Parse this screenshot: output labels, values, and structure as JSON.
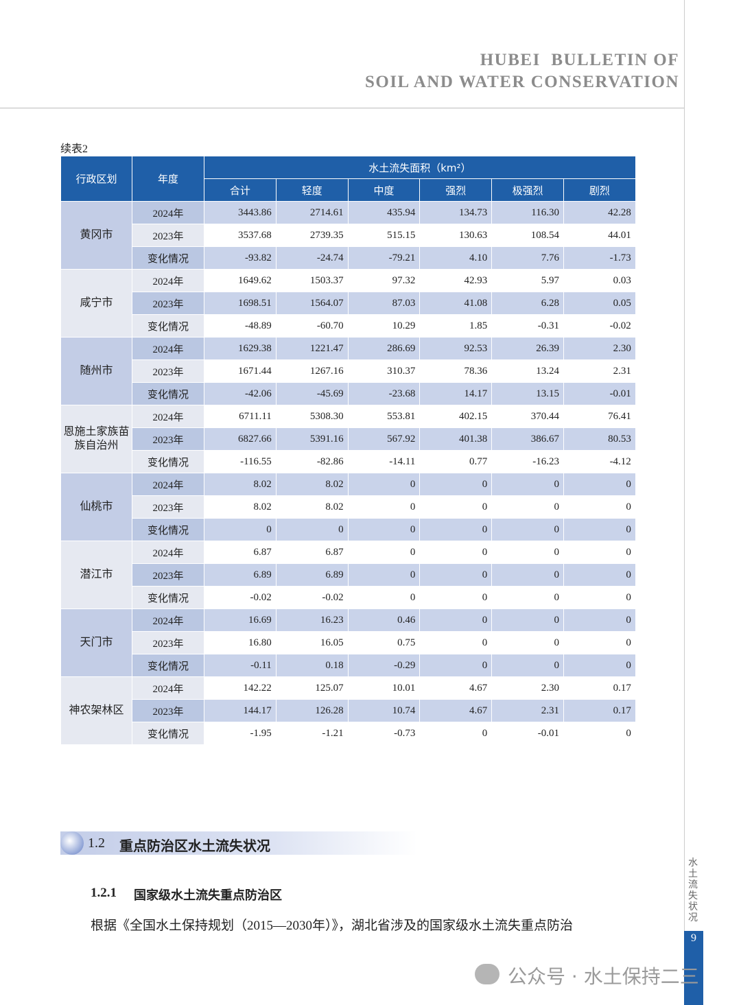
{
  "header": {
    "title_line1": "HUBEI  BULLETIN OF",
    "title_line2": "SOIL AND WATER CONSERVATION"
  },
  "sidebar": {
    "label": "水土流失状况",
    "page_number": "9"
  },
  "table": {
    "caption": "续表2",
    "header": {
      "region": "行政区划",
      "year": "年度",
      "group": "水土流失面积（km²）",
      "sub": [
        "合计",
        "轻度",
        "中度",
        "强烈",
        "极强烈",
        "剧烈"
      ]
    },
    "groups": [
      {
        "region": "黄冈市",
        "rows": [
          [
            "2024年",
            "3443.86",
            "2714.61",
            "435.94",
            "134.73",
            "116.30",
            "42.28"
          ],
          [
            "2023年",
            "3537.68",
            "2739.35",
            "515.15",
            "130.63",
            "108.54",
            "44.01"
          ],
          [
            "变化情况",
            "-93.82",
            "-24.74",
            "-79.21",
            "4.10",
            "7.76",
            "-1.73"
          ]
        ]
      },
      {
        "region": "咸宁市",
        "rows": [
          [
            "2024年",
            "1649.62",
            "1503.37",
            "97.32",
            "42.93",
            "5.97",
            "0.03"
          ],
          [
            "2023年",
            "1698.51",
            "1564.07",
            "87.03",
            "41.08",
            "6.28",
            "0.05"
          ],
          [
            "变化情况",
            "-48.89",
            "-60.70",
            "10.29",
            "1.85",
            "-0.31",
            "-0.02"
          ]
        ]
      },
      {
        "region": "随州市",
        "rows": [
          [
            "2024年",
            "1629.38",
            "1221.47",
            "286.69",
            "92.53",
            "26.39",
            "2.30"
          ],
          [
            "2023年",
            "1671.44",
            "1267.16",
            "310.37",
            "78.36",
            "13.24",
            "2.31"
          ],
          [
            "变化情况",
            "-42.06",
            "-45.69",
            "-23.68",
            "14.17",
            "13.15",
            "-0.01"
          ]
        ]
      },
      {
        "region": "恩施土家族苗族自治州",
        "rows": [
          [
            "2024年",
            "6711.11",
            "5308.30",
            "553.81",
            "402.15",
            "370.44",
            "76.41"
          ],
          [
            "2023年",
            "6827.66",
            "5391.16",
            "567.92",
            "401.38",
            "386.67",
            "80.53"
          ],
          [
            "变化情况",
            "-116.55",
            "-82.86",
            "-14.11",
            "0.77",
            "-16.23",
            "-4.12"
          ]
        ]
      },
      {
        "region": "仙桃市",
        "rows": [
          [
            "2024年",
            "8.02",
            "8.02",
            "0",
            "0",
            "0",
            "0"
          ],
          [
            "2023年",
            "8.02",
            "8.02",
            "0",
            "0",
            "0",
            "0"
          ],
          [
            "变化情况",
            "0",
            "0",
            "0",
            "0",
            "0",
            "0"
          ]
        ]
      },
      {
        "region": "潜江市",
        "rows": [
          [
            "2024年",
            "6.87",
            "6.87",
            "0",
            "0",
            "0",
            "0"
          ],
          [
            "2023年",
            "6.89",
            "6.89",
            "0",
            "0",
            "0",
            "0"
          ],
          [
            "变化情况",
            "-0.02",
            "-0.02",
            "0",
            "0",
            "0",
            "0"
          ]
        ]
      },
      {
        "region": "天门市",
        "rows": [
          [
            "2024年",
            "16.69",
            "16.23",
            "0.46",
            "0",
            "0",
            "0"
          ],
          [
            "2023年",
            "16.80",
            "16.05",
            "0.75",
            "0",
            "0",
            "0"
          ],
          [
            "变化情况",
            "-0.11",
            "0.18",
            "-0.29",
            "0",
            "0",
            "0"
          ]
        ]
      },
      {
        "region": "神农架林区",
        "rows": [
          [
            "2024年",
            "142.22",
            "125.07",
            "10.01",
            "4.67",
            "2.30",
            "0.17"
          ],
          [
            "2023年",
            "144.17",
            "126.28",
            "10.74",
            "4.67",
            "2.31",
            "0.17"
          ],
          [
            "变化情况",
            "-1.95",
            "-1.21",
            "-0.73",
            "0",
            "-0.01",
            "0"
          ]
        ]
      }
    ]
  },
  "section": {
    "number": "1.2",
    "title": "重点防治区水土流失状况"
  },
  "subsection": {
    "number": "1.2.1",
    "title": "国家级水土流失重点防治区",
    "paragraph": "根据《全国水土保持规划（2015—2030年）》，湖北省涉及的国家级水土流失重点防治"
  },
  "watermark": "公众号 · 水土保持二三"
}
